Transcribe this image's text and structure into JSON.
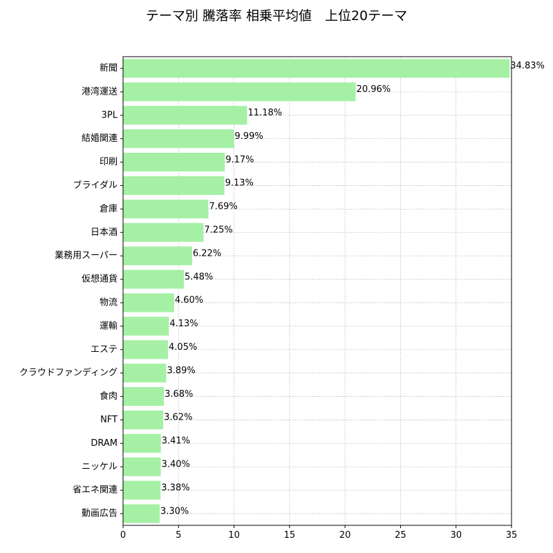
{
  "chart_data": {
    "type": "bar",
    "orientation": "horizontal",
    "title": "テーマ別 騰落率 相乗平均値　上位20テーマ",
    "xlabel": "",
    "ylabel": "",
    "xlim": [
      0,
      35
    ],
    "x_ticks": [
      0,
      5,
      10,
      15,
      20,
      25,
      30,
      35
    ],
    "grid": true,
    "bar_color": "#a5f0a5",
    "categories": [
      "新聞",
      "港湾運送",
      "3PL",
      "結婚関連",
      "印刷",
      "ブライダル",
      "倉庫",
      "日本酒",
      "業務用スーパー",
      "仮想通貨",
      "物流",
      "運輸",
      "エステ",
      "クラウドファンディング",
      "食肉",
      "NFT",
      "DRAM",
      "ニッケル",
      "省エネ関連",
      "動画広告"
    ],
    "values": [
      34.83,
      20.96,
      11.18,
      9.99,
      9.17,
      9.13,
      7.69,
      7.25,
      6.22,
      5.48,
      4.6,
      4.13,
      4.05,
      3.89,
      3.68,
      3.62,
      3.41,
      3.4,
      3.38,
      3.3
    ],
    "value_labels": [
      "34.83%",
      "20.96%",
      "11.18%",
      "9.99%",
      "9.17%",
      "9.13%",
      "7.69%",
      "7.25%",
      "6.22%",
      "5.48%",
      "4.60%",
      "4.13%",
      "4.05%",
      "3.89%",
      "3.68%",
      "3.62%",
      "3.41%",
      "3.40%",
      "3.38%",
      "3.30%"
    ]
  }
}
